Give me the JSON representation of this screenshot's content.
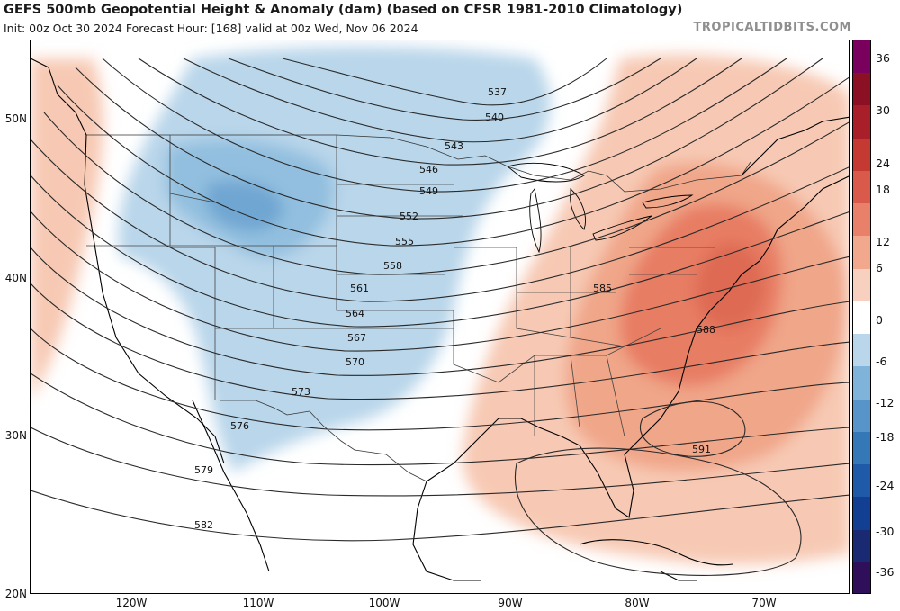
{
  "header": {
    "title": "GEFS 500mb Geopotential Height & Anomaly (dam) (based on CFSR 1981-2010 Climatology)",
    "subtitle": "Init: 00z Oct 30 2024   Forecast Hour: [168]   valid at 00z Wed, Nov 06 2024",
    "credit": "TROPICALTIDBITS.COM"
  },
  "axes": {
    "lat_labels": [
      "50N",
      "40N",
      "30N",
      "20N"
    ],
    "lon_labels": [
      "120W",
      "110W",
      "100W",
      "90W",
      "80W",
      "70W"
    ]
  },
  "contours": {
    "labels": [
      "537",
      "540",
      "543",
      "546",
      "549",
      "552",
      "555",
      "558",
      "561",
      "564",
      "567",
      "570",
      "573",
      "576",
      "579",
      "582",
      "585",
      "588",
      "591"
    ]
  },
  "colorbar": {
    "labels": [
      "36",
      "30",
      "24",
      "18",
      "12",
      "6",
      "0",
      "-6",
      "-12",
      "-18",
      "-24",
      "-30",
      "-36"
    ],
    "colors": [
      "#2f0f5a",
      "#1a2a72",
      "#133f93",
      "#1f5aa8",
      "#3478b8",
      "#5694c9",
      "#7fb3da",
      "#b9d6ea",
      "#ffffff",
      "#f8d0bf",
      "#f2a88c",
      "#e8806a",
      "#d95a4a",
      "#c43a33",
      "#a81f2a",
      "#8c1024",
      "#7a005e"
    ],
    "anomaly_colors": {
      "positive_light": "#f7c9b4",
      "positive_mid": "#f0a689",
      "positive_strong": "#e77d63",
      "positive_core": "#de6a52",
      "negative_light": "#b9d6ea",
      "negative_mid": "#92bfdf",
      "negative_strong": "#6fa6d2"
    }
  }
}
